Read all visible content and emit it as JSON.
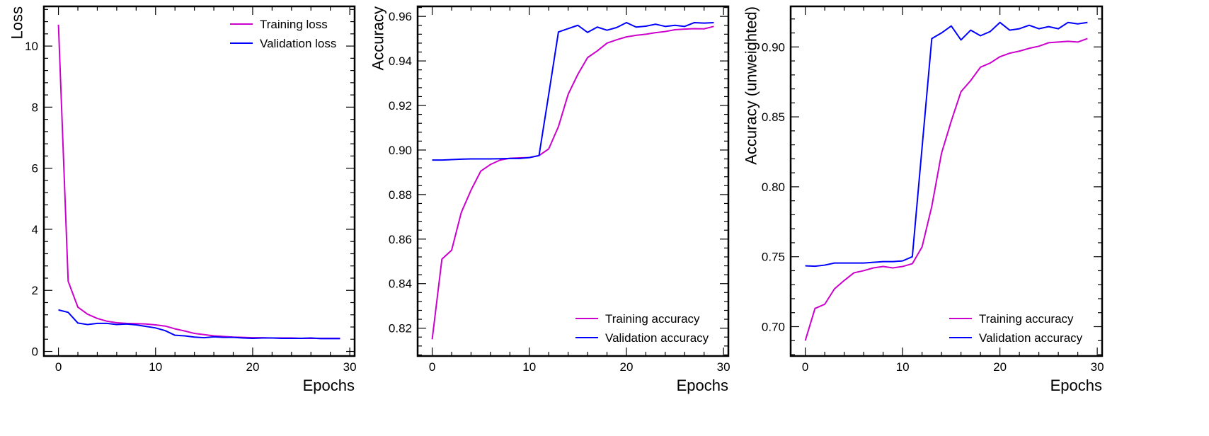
{
  "chart_data": [
    {
      "type": "line",
      "title": "",
      "xlabel": "Epochs",
      "ylabel": "Loss",
      "xlim": [
        -1.5,
        30.5
      ],
      "ylim": [
        -0.15,
        11.3
      ],
      "xticks": [
        0,
        10,
        20,
        30
      ],
      "yticks": [
        0,
        2,
        4,
        6,
        8,
        10
      ],
      "legend_position": "top-right",
      "x": [
        0,
        1,
        2,
        3,
        4,
        5,
        6,
        7,
        8,
        9,
        10,
        11,
        12,
        13,
        14,
        15,
        16,
        17,
        18,
        19,
        20,
        21,
        22,
        23,
        24,
        25,
        26,
        27,
        28,
        29
      ],
      "series": [
        {
          "name": "Training loss",
          "color": "#cc00cc",
          "values": [
            10.7,
            2.3,
            1.45,
            1.22,
            1.08,
            0.99,
            0.94,
            0.92,
            0.91,
            0.9,
            0.87,
            0.83,
            0.74,
            0.67,
            0.59,
            0.55,
            0.51,
            0.49,
            0.47,
            0.46,
            0.45,
            0.45,
            0.44,
            0.44,
            0.44,
            0.43,
            0.43,
            0.43,
            0.43,
            0.43
          ]
        },
        {
          "name": "Validation loss",
          "color": "#0000ff",
          "values": [
            1.36,
            1.28,
            0.93,
            0.88,
            0.92,
            0.92,
            0.88,
            0.9,
            0.87,
            0.82,
            0.77,
            0.68,
            0.53,
            0.51,
            0.47,
            0.45,
            0.48,
            0.46,
            0.46,
            0.44,
            0.43,
            0.44,
            0.44,
            0.43,
            0.43,
            0.43,
            0.44,
            0.42,
            0.42,
            0.42
          ]
        }
      ]
    },
    {
      "type": "line",
      "title": "",
      "xlabel": "Epochs",
      "ylabel": "Accuracy",
      "xlim": [
        -1.5,
        30.5
      ],
      "ylim": [
        0.8075,
        0.9645
      ],
      "xticks": [
        0,
        10,
        20,
        30
      ],
      "yticks": [
        0.82,
        0.84,
        0.86,
        0.88,
        0.9,
        0.92,
        0.94,
        0.96
      ],
      "ytick_labels": [
        "0.82",
        "0.84",
        "0.86",
        "0.88",
        "0.90",
        "0.92",
        "0.94",
        "0.96"
      ],
      "legend_position": "bottom-right",
      "x": [
        0,
        1,
        2,
        3,
        4,
        5,
        6,
        7,
        8,
        9,
        10,
        11,
        12,
        13,
        14,
        15,
        16,
        17,
        18,
        19,
        20,
        21,
        22,
        23,
        24,
        25,
        26,
        27,
        28,
        29
      ],
      "series": [
        {
          "name": "Training accuracy",
          "color": "#cc00cc",
          "values": [
            0.815,
            0.851,
            0.855,
            0.872,
            0.882,
            0.8905,
            0.8935,
            0.8955,
            0.8963,
            0.8965,
            0.8966,
            0.8975,
            0.9005,
            0.9105,
            0.925,
            0.934,
            0.9415,
            0.9445,
            0.948,
            0.9495,
            0.9508,
            0.9515,
            0.952,
            0.9527,
            0.9532,
            0.954,
            0.9543,
            0.9545,
            0.9544,
            0.9555
          ]
        },
        {
          "name": "Validation accuracy",
          "color": "#0000ff",
          "values": [
            0.8955,
            0.8955,
            0.8957,
            0.8959,
            0.896,
            0.896,
            0.896,
            0.8961,
            0.8962,
            0.8962,
            0.8966,
            0.8975,
            0.925,
            0.953,
            0.9545,
            0.956,
            0.9528,
            0.9552,
            0.9538,
            0.955,
            0.9572,
            0.9552,
            0.9556,
            0.9565,
            0.9555,
            0.956,
            0.9555,
            0.9572,
            0.957,
            0.9572
          ]
        }
      ]
    },
    {
      "type": "line",
      "title": "",
      "xlabel": "Epochs",
      "ylabel": "Accuracy (unweighted)",
      "xlim": [
        -1.5,
        30.5
      ],
      "ylim": [
        0.679,
        0.929
      ],
      "xticks": [
        0,
        10,
        20,
        30
      ],
      "yticks": [
        0.7,
        0.75,
        0.8,
        0.85,
        0.9
      ],
      "ytick_labels": [
        "0.70",
        "0.75",
        "0.80",
        "0.85",
        "0.90"
      ],
      "legend_position": "bottom-right",
      "x": [
        0,
        1,
        2,
        3,
        4,
        5,
        6,
        7,
        8,
        9,
        10,
        11,
        12,
        13,
        14,
        15,
        16,
        17,
        18,
        19,
        20,
        21,
        22,
        23,
        24,
        25,
        26,
        27,
        28,
        29
      ],
      "series": [
        {
          "name": "Training accuracy",
          "color": "#cc00cc",
          "values": [
            0.69,
            0.713,
            0.716,
            0.727,
            0.733,
            0.7385,
            0.74,
            0.742,
            0.743,
            0.742,
            0.743,
            0.745,
            0.757,
            0.786,
            0.824,
            0.847,
            0.868,
            0.876,
            0.8855,
            0.8885,
            0.893,
            0.8955,
            0.897,
            0.899,
            0.9005,
            0.903,
            0.9035,
            0.904,
            0.9035,
            0.906
          ]
        },
        {
          "name": "Validation accuracy",
          "color": "#0000ff",
          "values": [
            0.7435,
            0.7432,
            0.744,
            0.7455,
            0.7455,
            0.7455,
            0.7455,
            0.746,
            0.7465,
            0.7465,
            0.747,
            0.75,
            0.828,
            0.906,
            0.91,
            0.915,
            0.905,
            0.912,
            0.908,
            0.911,
            0.9175,
            0.912,
            0.913,
            0.9155,
            0.913,
            0.9145,
            0.913,
            0.9175,
            0.9165,
            0.9175
          ]
        }
      ]
    }
  ]
}
